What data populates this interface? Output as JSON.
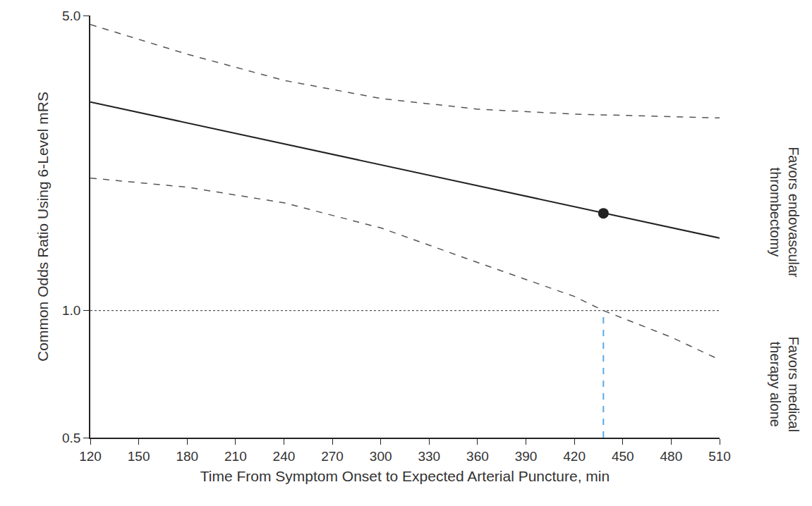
{
  "chart_data": {
    "type": "line",
    "x_label": "Time From Symptom Onset to Expected Arterial Puncture, min",
    "y_label": "Common Odds Ratio Using 6-Level mRS",
    "xlim": [
      120,
      510
    ],
    "xticks": [
      120,
      150,
      180,
      210,
      240,
      270,
      300,
      330,
      360,
      390,
      420,
      450,
      480,
      510
    ],
    "ylim": [
      0.5,
      5.0
    ],
    "yticks": [
      0.5,
      {
        "value": 1,
        "label": "1.0"
      },
      {
        "value": 5,
        "label": "5.0"
      }
    ],
    "log": "y",
    "grid": false,
    "series": [
      {
        "x": [
          120,
          510
        ],
        "values": [
          3.12,
          1.485
        ],
        "color": "#222222",
        "line_style": "solid"
      },
      {
        "x": [
          120,
          180,
          240,
          300,
          360,
          420,
          510
        ],
        "values": [
          4.76,
          4.05,
          3.51,
          3.18,
          3.0,
          2.92,
          2.86
        ],
        "color": "#555555",
        "line_style": "dashed"
      },
      {
        "x": [
          120,
          180,
          240,
          300,
          360,
          420,
          438,
          480,
          510
        ],
        "values": [
          2.06,
          1.96,
          1.8,
          1.57,
          1.3,
          1.08,
          1.0,
          0.865,
          0.765
        ],
        "color": "#555555",
        "line_style": "dashed"
      }
    ],
    "point": {
      "x": 438,
      "y": 1.7,
      "color": "#222222"
    },
    "reference_line": {
      "y": 1,
      "color": "#555555",
      "line_style": "dotted"
    },
    "threshold_line": {
      "x": 438,
      "from": 0.5,
      "to": 1,
      "color": "#5aa9e6",
      "line_style": "dashed"
    },
    "annotations": [
      {
        "text": "Favors endovascular thrombectomy"
      },
      {
        "text": "Favors medical therapy alone"
      }
    ]
  }
}
